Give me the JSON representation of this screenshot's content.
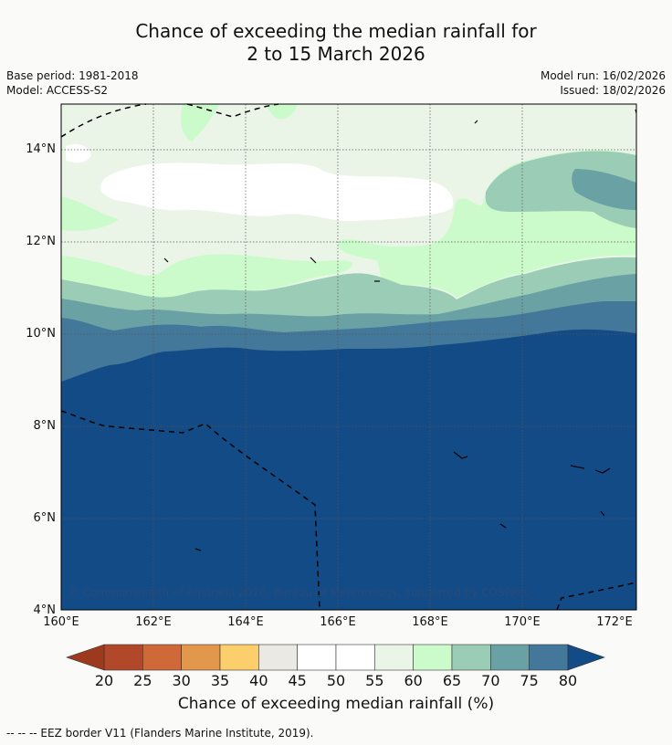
{
  "title": {
    "line1": "Chance of exceeding the median rainfall for",
    "line2": "2 to 15 March 2026"
  },
  "meta": {
    "base_period": "Base period: 1981-2018",
    "model": "Model: ACCESS-S2",
    "model_run": "Model run: 16/02/2026",
    "issued": "Issued: 18/02/2026"
  },
  "axes": {
    "x_ticks": [
      "160°E",
      "162°E",
      "164°E",
      "166°E",
      "168°E",
      "170°E",
      "172°E"
    ],
    "y_ticks": [
      "14°N",
      "12°N",
      "10°N",
      "8°N",
      "6°N",
      "4°N"
    ],
    "lon_range": [
      160,
      172.5
    ],
    "lat_range": [
      4,
      15
    ]
  },
  "copyright": "© Commonwealth of Australia 2026, Bureau of Meteorology, supported by COSPPac",
  "colorbar": {
    "title": "Chance of exceeding median rainfall (%)",
    "ticks": [
      "20",
      "25",
      "30",
      "35",
      "40",
      "45",
      "50",
      "55",
      "60",
      "65",
      "70",
      "75",
      "80"
    ],
    "under_color": "#9c3a1d",
    "over_color": "#124b86",
    "colors": [
      "#b2482a",
      "#d0693a",
      "#e3974b",
      "#fcce6c",
      "#ebe9e4",
      "#ffffff",
      "#ffffff",
      "#eaf5e8",
      "#ccfbcb",
      "#9bcdb6",
      "#6aa1a4",
      "#44789b"
    ]
  },
  "colors": {
    "c55": "#eaf5e8",
    "c60": "#ffffff",
    "c65": "#ccfbcb",
    "c70": "#9bcdb6",
    "c75": "#6aa1a4",
    "c80": "#44789b",
    "c85": "#124b86"
  },
  "footnote": "--  --  -- EEZ border V11 (Flanders Marine Institute, 2019)."
}
